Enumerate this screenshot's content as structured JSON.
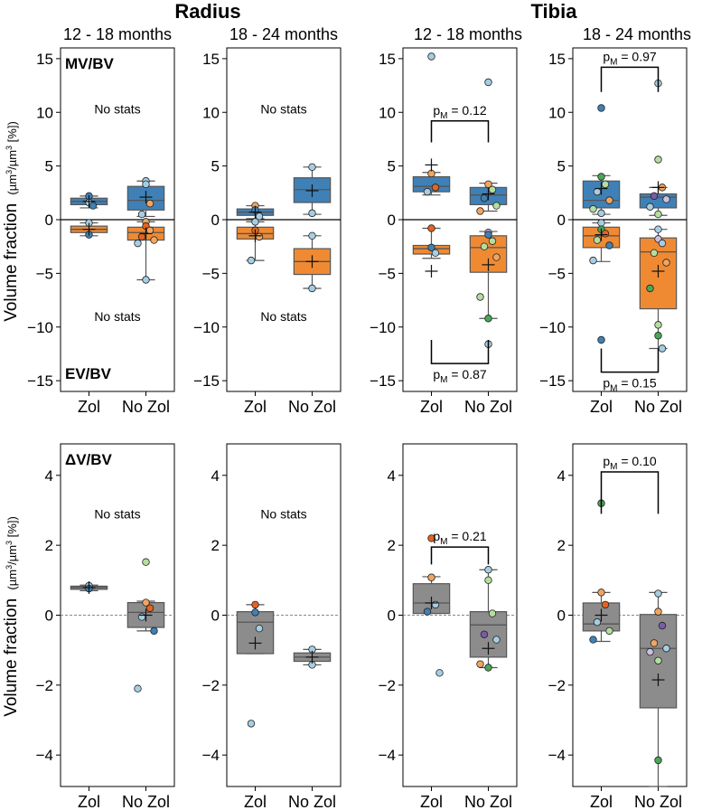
{
  "headers": {
    "radius": "Radius",
    "tibia": "Tibia",
    "age_a": "12 - 18 months",
    "age_b": "18 - 24 months"
  },
  "y_label": {
    "main": "Volume fraction",
    "unit_pre": "(µm",
    "unit_sup": "3",
    "unit_mid": "/µm",
    "unit_sup2": "3",
    "unit_post": " [%])"
  },
  "groups": [
    "Zol",
    "No Zol"
  ],
  "colors": {
    "formation": "#3f81b6",
    "resorption": "#ef8a33",
    "delta": "#8c8c8c",
    "box_edge": "#555555",
    "palette": [
      "#3f81b6",
      "#a6cee3",
      "#e5641f",
      "#f2a560",
      "#4aa757",
      "#b4dea0",
      "#7a5ca6",
      "#cbc0e0"
    ]
  },
  "chart_data": [
    {
      "type": "box",
      "id": "radius-12-18-mvev",
      "bone": "Radius",
      "age": "12 - 18 months",
      "row": "MV/BV - EV/BV",
      "ylim": [
        -16,
        16
      ],
      "yticks": [
        -15,
        -10,
        -5,
        0,
        5,
        10,
        15
      ],
      "tl_label": "MV/BV",
      "bl_label": "EV/BV",
      "notes": [
        {
          "text": "No stats",
          "x": 0.5,
          "y": 10.3
        },
        {
          "text": "No stats",
          "x": 0.5,
          "y": -9
        }
      ],
      "series": [
        {
          "group": "Zol",
          "kind": "formation",
          "q1": 1.4,
          "median": 1.7,
          "q3": 2.0,
          "wlow": 1.1,
          "whigh": 2.2,
          "mean": 1.7,
          "points": [
            {
              "v": 2.2,
              "c": 0
            },
            {
              "v": 1.6,
              "c": 1
            },
            {
              "v": 1.3,
              "c": 0
            }
          ]
        },
        {
          "group": "Zol",
          "kind": "resorption",
          "q1": -1.2,
          "median": -0.9,
          "q3": -0.6,
          "wlow": -1.5,
          "whigh": -0.3,
          "mean": -0.9,
          "points": [
            {
              "v": -0.3,
              "c": 1
            },
            {
              "v": -1.4,
              "c": 0
            }
          ]
        },
        {
          "group": "No Zol",
          "kind": "formation",
          "q1": 0.9,
          "median": 1.8,
          "q3": 3.1,
          "wlow": 0.3,
          "whigh": 3.6,
          "mean": 2.1,
          "points": [
            {
              "v": 3.6,
              "c": 1
            },
            {
              "v": 3.3,
              "c": 1
            },
            {
              "v": 1.5,
              "c": 3
            },
            {
              "v": 0.5,
              "c": 1
            }
          ]
        },
        {
          "group": "No Zol",
          "kind": "resorption",
          "q1": -1.9,
          "median": -1.2,
          "q3": -0.7,
          "wlow": -5.6,
          "whigh": -0.2,
          "mean": -1.3,
          "points": [
            {
              "v": -0.2,
              "c": 3
            },
            {
              "v": -0.6,
              "c": 2
            },
            {
              "v": -1.0,
              "c": 3
            },
            {
              "v": -1.6,
              "c": 2
            },
            {
              "v": -1.9,
              "c": 3
            },
            {
              "v": -2.2,
              "c": 1
            },
            {
              "v": -5.6,
              "c": 1
            }
          ]
        }
      ]
    },
    {
      "type": "box",
      "id": "radius-18-24-mvev",
      "bone": "Radius",
      "age": "18 - 24 months",
      "row": "MV/BV - EV/BV",
      "ylim": [
        -16,
        16
      ],
      "yticks": [
        -15,
        -10,
        -5,
        0,
        5,
        10,
        15
      ],
      "notes": [
        {
          "text": "No stats",
          "x": 0.5,
          "y": 10.3
        },
        {
          "text": "No stats",
          "x": 0.5,
          "y": -9
        }
      ],
      "series": [
        {
          "group": "Zol",
          "kind": "formation",
          "q1": 0.4,
          "median": 0.7,
          "q3": 1.0,
          "wlow": 0.1,
          "whigh": 1.3,
          "mean": 0.7,
          "points": [
            {
              "v": 1.3,
              "c": 3
            },
            {
              "v": 0.9,
              "c": 0
            },
            {
              "v": 0.3,
              "c": 1
            }
          ]
        },
        {
          "group": "Zol",
          "kind": "resorption",
          "q1": -1.8,
          "median": -1.3,
          "q3": -0.7,
          "wlow": -3.8,
          "whigh": -0.2,
          "mean": -1.5,
          "points": [
            {
              "v": -0.2,
              "c": 1
            },
            {
              "v": -1.0,
              "c": 2
            },
            {
              "v": -1.6,
              "c": 3
            },
            {
              "v": -3.8,
              "c": 1
            }
          ]
        },
        {
          "group": "No Zol",
          "kind": "formation",
          "q1": 1.6,
          "median": 2.8,
          "q3": 3.9,
          "wlow": 0.5,
          "whigh": 4.9,
          "mean": 2.7,
          "points": [
            {
              "v": 4.9,
              "c": 1
            },
            {
              "v": 0.6,
              "c": 1
            }
          ]
        },
        {
          "group": "No Zol",
          "kind": "resorption",
          "q1": -5.1,
          "median": -3.9,
          "q3": -2.7,
          "wlow": -6.4,
          "whigh": -1.5,
          "mean": -3.9,
          "points": [
            {
              "v": -1.5,
              "c": 1
            },
            {
              "v": -6.4,
              "c": 1
            }
          ]
        }
      ]
    },
    {
      "type": "box",
      "id": "tibia-12-18-mvev",
      "bone": "Tibia",
      "age": "12 - 18 months",
      "row": "MV/BV - EV/BV",
      "ylim": [
        -16,
        16
      ],
      "yticks": [
        -15,
        -10,
        -5,
        0,
        5,
        10,
        15
      ],
      "notes": [],
      "brackets": [
        {
          "p": "0.12",
          "side": "top",
          "y": 9.2,
          "leg_to": 7.2
        },
        {
          "p": "0.87",
          "side": "bottom",
          "y": -13.4,
          "leg_to": -11.2
        }
      ],
      "series": [
        {
          "group": "Zol",
          "kind": "formation",
          "q1": 2.6,
          "median": 3.1,
          "q3": 4.0,
          "wlow": 2.3,
          "whigh": 4.4,
          "mean": 5.1,
          "points": [
            {
              "v": 15.2,
              "c": 1
            },
            {
              "v": 4.3,
              "c": 3
            },
            {
              "v": 3.0,
              "c": 2
            },
            {
              "v": 2.6,
              "c": 1
            }
          ]
        },
        {
          "group": "Zol",
          "kind": "resorption",
          "q1": -3.2,
          "median": -2.7,
          "q3": -2.4,
          "wlow": -3.6,
          "whigh": -0.8,
          "mean": -4.8,
          "points": [
            {
              "v": -0.8,
              "c": 2
            },
            {
              "v": -2.6,
              "c": 0
            },
            {
              "v": -3.1,
              "c": 1
            }
          ]
        },
        {
          "group": "No Zol",
          "kind": "formation",
          "q1": 1.4,
          "median": 2.3,
          "q3": 3.0,
          "wlow": 0.8,
          "whigh": 3.4,
          "mean": 2.4,
          "points": [
            {
              "v": 12.8,
              "c": 1
            },
            {
              "v": 3.3,
              "c": 3
            },
            {
              "v": 2.8,
              "c": 5
            },
            {
              "v": 2.0,
              "c": 0
            },
            {
              "v": 1.3,
              "c": 5
            },
            {
              "v": 0.8,
              "c": 3
            }
          ]
        },
        {
          "group": "No Zol",
          "kind": "resorption",
          "q1": -4.9,
          "median": -2.6,
          "q3": -1.5,
          "wlow": -9.2,
          "whigh": -1.1,
          "mean": -4.2,
          "points": [
            {
              "v": -1.2,
              "c": 7
            },
            {
              "v": -1.4,
              "c": 0
            },
            {
              "v": -2.0,
              "c": 5
            },
            {
              "v": -2.5,
              "c": 5
            },
            {
              "v": -3.5,
              "c": 3
            },
            {
              "v": -7.2,
              "c": 5
            },
            {
              "v": -9.2,
              "c": 4
            },
            {
              "v": -11.6,
              "c": 1
            }
          ]
        }
      ]
    },
    {
      "type": "box",
      "id": "tibia-18-24-mvev",
      "bone": "Tibia",
      "age": "18 - 24 months",
      "row": "MV/BV - EV/BV",
      "ylim": [
        -16,
        16
      ],
      "yticks": [
        -15,
        -10,
        -5,
        0,
        5,
        10,
        15
      ],
      "notes": [],
      "brackets": [
        {
          "p": "0.97",
          "side": "top",
          "y": 14.2,
          "leg_to": 11.9
        },
        {
          "p": "0.15",
          "side": "bottom",
          "y": -14.2,
          "leg_to": -12.0
        }
      ],
      "series": [
        {
          "group": "Zol",
          "kind": "formation",
          "q1": 1.1,
          "median": 1.8,
          "q3": 3.6,
          "wlow": 0.5,
          "whigh": 4.1,
          "mean": 2.9,
          "points": [
            {
              "v": 10.4,
              "c": 0
            },
            {
              "v": 4.0,
              "c": 4
            },
            {
              "v": 3.3,
              "c": 5
            },
            {
              "v": 2.6,
              "c": 1
            },
            {
              "v": 1.8,
              "c": 3
            },
            {
              "v": 1.0,
              "c": 5
            },
            {
              "v": 0.6,
              "c": 1
            }
          ]
        },
        {
          "group": "Zol",
          "kind": "resorption",
          "q1": -2.6,
          "median": -1.5,
          "q3": -0.7,
          "wlow": -3.9,
          "whigh": -0.3,
          "mean": -1.4,
          "points": [
            {
              "v": -0.3,
              "c": 1
            },
            {
              "v": -0.9,
              "c": 4
            },
            {
              "v": -1.3,
              "c": 2
            },
            {
              "v": -1.9,
              "c": 5
            },
            {
              "v": -2.4,
              "c": 0
            },
            {
              "v": -3.8,
              "c": 1
            },
            {
              "v": -11.2,
              "c": 0
            }
          ]
        },
        {
          "group": "No Zol",
          "kind": "formation",
          "q1": 1.1,
          "median": 2.1,
          "q3": 2.4,
          "wlow": 0.4,
          "whigh": 3.0,
          "mean": 3.0,
          "points": [
            {
              "v": 12.7,
              "c": 1
            },
            {
              "v": 5.6,
              "c": 5
            },
            {
              "v": 3.0,
              "c": 3
            },
            {
              "v": 2.2,
              "c": 6
            },
            {
              "v": 1.9,
              "c": 7
            },
            {
              "v": 1.2,
              "c": 1
            },
            {
              "v": 0.5,
              "c": 5
            }
          ]
        },
        {
          "group": "No Zol",
          "kind": "resorption",
          "q1": -8.3,
          "median": -3.0,
          "q3": -1.7,
          "wlow": -12.0,
          "whigh": -0.9,
          "mean": -4.8,
          "points": [
            {
              "v": -0.9,
              "c": 1
            },
            {
              "v": -1.8,
              "c": 7
            },
            {
              "v": -2.2,
              "c": 1
            },
            {
              "v": -3.1,
              "c": 5
            },
            {
              "v": -4.0,
              "c": 3
            },
            {
              "v": -6.4,
              "c": 4
            },
            {
              "v": -9.8,
              "c": 5
            },
            {
              "v": -10.8,
              "c": 4
            },
            {
              "v": -12.0,
              "c": 1
            }
          ]
        }
      ]
    },
    {
      "type": "box",
      "id": "radius-12-18-dv",
      "bone": "Radius",
      "age": "12 - 18 months",
      "row": "ΔV/BV",
      "ylim": [
        -4.9,
        4.9
      ],
      "yticks": [
        -4,
        -2,
        0,
        2,
        4
      ],
      "tl_label": "ΔV/BV",
      "notes": [
        {
          "text": "No stats",
          "x": 0.5,
          "y": 2.9
        }
      ],
      "series": [
        {
          "group": "Zol",
          "kind": "delta",
          "q1": 0.74,
          "median": 0.79,
          "q3": 0.83,
          "wlow": 0.7,
          "whigh": 0.86,
          "mean": 0.79,
          "points": [
            {
              "v": 0.84,
              "c": 1
            },
            {
              "v": 0.76,
              "c": 0
            }
          ]
        },
        {
          "group": "No Zol",
          "kind": "delta",
          "q1": -0.35,
          "median": 0.08,
          "q3": 0.36,
          "wlow": -0.45,
          "whigh": 0.4,
          "mean": 0.0,
          "points": [
            {
              "v": 1.52,
              "c": 5
            },
            {
              "v": 0.36,
              "c": 3
            },
            {
              "v": 0.2,
              "c": 2
            },
            {
              "v": -0.05,
              "c": 1
            },
            {
              "v": -0.45,
              "c": 0
            },
            {
              "v": -2.1,
              "c": 1
            }
          ]
        }
      ]
    },
    {
      "type": "box",
      "id": "radius-18-24-dv",
      "bone": "Radius",
      "age": "18 - 24 months",
      "row": "ΔV/BV",
      "ylim": [
        -4.9,
        4.9
      ],
      "yticks": [
        -4,
        -2,
        0,
        2,
        4
      ],
      "notes": [
        {
          "text": "No stats",
          "x": 0.5,
          "y": 2.9
        }
      ],
      "series": [
        {
          "group": "Zol",
          "kind": "delta",
          "q1": -1.1,
          "median": -0.2,
          "q3": 0.1,
          "wlow": -1.1,
          "whigh": 0.3,
          "mean": -0.8,
          "points": [
            {
              "v": 0.3,
              "c": 2
            },
            {
              "v": 0.08,
              "c": 0
            },
            {
              "v": -0.38,
              "c": 1
            },
            {
              "v": -3.1,
              "c": 1
            }
          ]
        },
        {
          "group": "No Zol",
          "kind": "delta",
          "q1": -1.32,
          "median": -1.2,
          "q3": -1.08,
          "wlow": -1.42,
          "whigh": -0.98,
          "mean": -1.2,
          "points": [
            {
              "v": -0.98,
              "c": 1
            },
            {
              "v": -1.42,
              "c": 1
            }
          ]
        }
      ]
    },
    {
      "type": "box",
      "id": "tibia-12-18-dv",
      "bone": "Tibia",
      "age": "12 - 18 months",
      "row": "ΔV/BV",
      "ylim": [
        -4.9,
        4.9
      ],
      "yticks": [
        -4,
        -2,
        0,
        2,
        4
      ],
      "notes": [],
      "brackets": [
        {
          "p": "0.21",
          "side": "top",
          "y": 1.95,
          "leg_to": 1.45
        }
      ],
      "series": [
        {
          "group": "Zol",
          "kind": "delta",
          "q1": 0.05,
          "median": 0.35,
          "q3": 0.9,
          "wlow": 0.05,
          "whigh": 1.1,
          "mean": 0.35,
          "points": [
            {
              "v": 2.2,
              "c": 2
            },
            {
              "v": 1.08,
              "c": 3
            },
            {
              "v": 0.3,
              "c": 1
            },
            {
              "v": 0.1,
              "c": 0
            },
            {
              "v": -1.65,
              "c": 1
            }
          ]
        },
        {
          "group": "No Zol",
          "kind": "delta",
          "q1": -1.2,
          "median": -0.28,
          "q3": 0.1,
          "wlow": -1.5,
          "whigh": 1.3,
          "mean": -0.95,
          "points": [
            {
              "v": 1.3,
              "c": 1
            },
            {
              "v": 1.0,
              "c": 5
            },
            {
              "v": 0.05,
              "c": 5
            },
            {
              "v": -0.55,
              "c": 6
            },
            {
              "v": -0.7,
              "c": 1
            },
            {
              "v": -1.4,
              "c": 3
            },
            {
              "v": -1.5,
              "c": 4
            }
          ]
        }
      ]
    },
    {
      "type": "box",
      "id": "tibia-18-24-dv",
      "bone": "Tibia",
      "age": "18 - 24 months",
      "row": "ΔV/BV",
      "ylim": [
        -4.9,
        4.9
      ],
      "yticks": [
        -4,
        -2,
        0,
        2,
        4
      ],
      "notes": [],
      "brackets": [
        {
          "p": "0.10",
          "side": "top",
          "y": 4.1,
          "leg_to": 2.9
        }
      ],
      "series": [
        {
          "group": "Zol",
          "kind": "delta",
          "q1": -0.45,
          "median": -0.25,
          "q3": 0.35,
          "wlow": -0.75,
          "whigh": 0.65,
          "mean": 0.0,
          "points": [
            {
              "v": 3.2,
              "c": 4
            },
            {
              "v": 0.65,
              "c": 3
            },
            {
              "v": 0.3,
              "c": 2
            },
            {
              "v": -0.2,
              "c": 1
            },
            {
              "v": -0.45,
              "c": 5
            },
            {
              "v": -0.7,
              "c": 0
            }
          ]
        },
        {
          "group": "No Zol",
          "kind": "delta",
          "q1": -2.65,
          "median": -0.95,
          "q3": 0.02,
          "wlow": -4.9,
          "whigh": 0.65,
          "mean": -1.85,
          "points": [
            {
              "v": 0.62,
              "c": 1
            },
            {
              "v": 0.1,
              "c": 3
            },
            {
              "v": -0.3,
              "c": 6
            },
            {
              "v": -0.8,
              "c": 3
            },
            {
              "v": -0.95,
              "c": 1
            },
            {
              "v": -1.05,
              "c": 7
            },
            {
              "v": -1.3,
              "c": 5
            },
            {
              "v": -4.15,
              "c": 4
            }
          ]
        }
      ]
    }
  ]
}
